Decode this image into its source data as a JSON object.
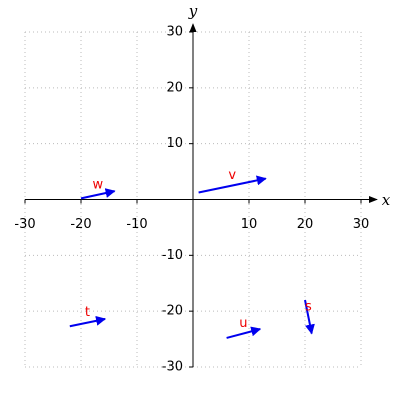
{
  "chart_data": {
    "type": "vector",
    "x_label": "x",
    "y_label": "y",
    "xlim": [
      -30,
      30
    ],
    "ylim": [
      -30,
      30
    ],
    "xticks": [
      -30,
      -20,
      -10,
      10,
      20,
      30
    ],
    "yticks": [
      -30,
      -20,
      -10,
      10,
      20,
      30
    ],
    "grid": true,
    "color": "#0000ee",
    "label_color": "#ee0000",
    "vectors": [
      {
        "name": "v",
        "start": [
          1,
          1.25
        ],
        "end": [
          13,
          3.75
        ]
      },
      {
        "name": "w",
        "start": [
          -20,
          0.2
        ],
        "end": [
          -14,
          1.5
        ]
      },
      {
        "name": "t",
        "start": [
          -22,
          -22.7
        ],
        "end": [
          -15.7,
          -21.4
        ]
      },
      {
        "name": "u",
        "start": [
          6,
          -24.8
        ],
        "end": [
          12,
          -23.2
        ]
      },
      {
        "name": "s",
        "start": [
          20,
          -18
        ],
        "end": [
          21.2,
          -24
        ]
      }
    ]
  }
}
